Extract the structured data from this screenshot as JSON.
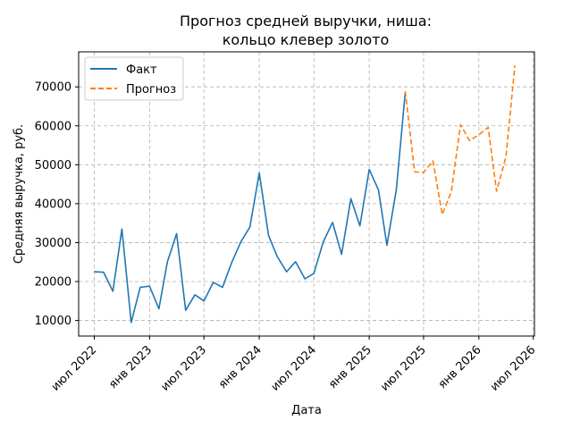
{
  "chart_data": {
    "type": "line",
    "title_lines": [
      "Прогноз средней выручки, ниша:",
      "кольцо клевер золото"
    ],
    "xlabel": "Дата",
    "ylabel": "Средняя выручка, руб.",
    "xlim": [
      "2022-05-10",
      "2026-07-05"
    ],
    "ylim": [
      6000,
      79000
    ],
    "y_ticks": [
      10000,
      20000,
      30000,
      40000,
      50000,
      60000,
      70000
    ],
    "x_ticks": [
      {
        "date": "2022-07-01",
        "label": "июл 2022"
      },
      {
        "date": "2023-01-01",
        "label": "янв 2023"
      },
      {
        "date": "2023-07-01",
        "label": "июл 2023"
      },
      {
        "date": "2024-01-01",
        "label": "янв 2024"
      },
      {
        "date": "2024-07-01",
        "label": "июл 2024"
      },
      {
        "date": "2025-01-01",
        "label": "янв 2025"
      },
      {
        "date": "2025-07-01",
        "label": "июл 2025"
      },
      {
        "date": "2026-01-01",
        "label": "янв 2026"
      },
      {
        "date": "2026-07-01",
        "label": "июл 2026"
      }
    ],
    "grid": true,
    "legend_position": "top-left",
    "series": [
      {
        "name": "Факт",
        "color": "#1f77b4",
        "style": "solid",
        "points": [
          [
            "2022-07-01",
            22500
          ],
          [
            "2022-08-01",
            22400
          ],
          [
            "2022-09-01",
            17500
          ],
          [
            "2022-10-01",
            33500
          ],
          [
            "2022-11-01",
            9500
          ],
          [
            "2022-12-01",
            18500
          ],
          [
            "2023-01-01",
            18800
          ],
          [
            "2023-02-01",
            13000
          ],
          [
            "2023-03-01",
            25000
          ],
          [
            "2023-04-01",
            32300
          ],
          [
            "2023-05-01",
            12600
          ],
          [
            "2023-06-01",
            16600
          ],
          [
            "2023-07-01",
            15000
          ],
          [
            "2023-08-01",
            19800
          ],
          [
            "2023-09-01",
            18500
          ],
          [
            "2023-10-01",
            24800
          ],
          [
            "2023-11-01",
            30200
          ],
          [
            "2023-12-01",
            34000
          ],
          [
            "2024-01-01",
            47900
          ],
          [
            "2024-02-01",
            31800
          ],
          [
            "2024-03-01",
            26400
          ],
          [
            "2024-04-01",
            22500
          ],
          [
            "2024-05-01",
            25100
          ],
          [
            "2024-06-01",
            20700
          ],
          [
            "2024-07-01",
            22100
          ],
          [
            "2024-08-01",
            30200
          ],
          [
            "2024-09-01",
            35200
          ],
          [
            "2024-10-01",
            27000
          ],
          [
            "2024-11-01",
            41300
          ],
          [
            "2024-12-01",
            34300
          ],
          [
            "2025-01-01",
            48800
          ],
          [
            "2025-02-01",
            43500
          ],
          [
            "2025-03-01",
            29300
          ],
          [
            "2025-04-01",
            43500
          ],
          [
            "2025-05-01",
            68500
          ]
        ]
      },
      {
        "name": "Прогноз",
        "color": "#ff7f0e",
        "style": "dashed",
        "points": [
          [
            "2025-05-01",
            68900
          ],
          [
            "2025-06-01",
            48200
          ],
          [
            "2025-07-01",
            48000
          ],
          [
            "2025-08-01",
            51000
          ],
          [
            "2025-09-01",
            37200
          ],
          [
            "2025-10-01",
            43000
          ],
          [
            "2025-11-01",
            60300
          ],
          [
            "2025-12-01",
            56200
          ],
          [
            "2026-01-01",
            57700
          ],
          [
            "2026-02-01",
            59600
          ],
          [
            "2026-03-01",
            43200
          ],
          [
            "2026-04-01",
            52000
          ],
          [
            "2026-05-01",
            75500
          ]
        ]
      }
    ]
  }
}
